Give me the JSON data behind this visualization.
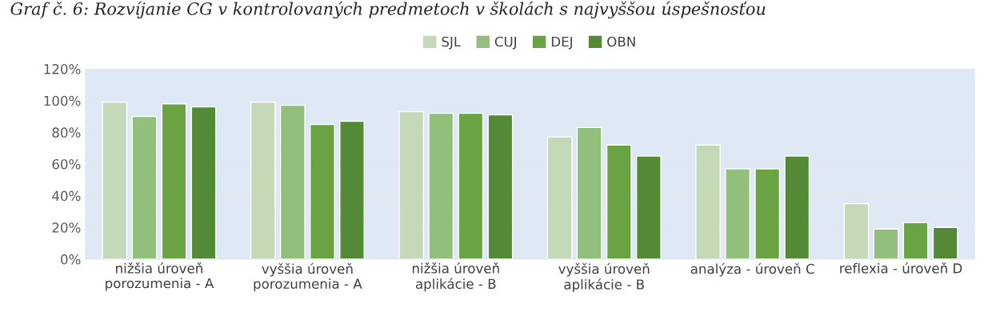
{
  "chart_data": {
    "type": "bar",
    "title": "Graf č. 6: Rozvíjanie CG v kontrolovaných predmetoch v školách s najvyššou úspešnosťou",
    "categories": [
      "nižšia úroveň\nporozumenia - A",
      "vyššia úroveň\nporozumenia - A",
      "nižšia úroveň\naplikácie - B",
      "vyššia úroveň\naplikácie - B",
      "analýza - úroveň C",
      "reflexia - úroveň D"
    ],
    "series": [
      {
        "name": "SJL",
        "color": "#c3d9b8",
        "values": [
          99,
          99,
          93,
          77,
          72,
          35
        ]
      },
      {
        "name": "CUJ",
        "color": "#93bf7c",
        "values": [
          90,
          97,
          92,
          83,
          57,
          19
        ]
      },
      {
        "name": "DEJ",
        "color": "#6aa442",
        "values": [
          98,
          85,
          92,
          72,
          57,
          23
        ]
      },
      {
        "name": "OBN",
        "color": "#548a36",
        "values": [
          96,
          87,
          91,
          65,
          65,
          20
        ]
      }
    ],
    "ylim": [
      0,
      120
    ],
    "yticks": [
      {
        "value": 0,
        "label": "0%"
      },
      {
        "value": 20,
        "label": "20%"
      },
      {
        "value": 40,
        "label": "40%"
      },
      {
        "value": 60,
        "label": "60%"
      },
      {
        "value": 80,
        "label": "80%"
      },
      {
        "value": 100,
        "label": "100%"
      },
      {
        "value": 120,
        "label": "120%"
      }
    ],
    "grid": "y",
    "legend": "top"
  }
}
